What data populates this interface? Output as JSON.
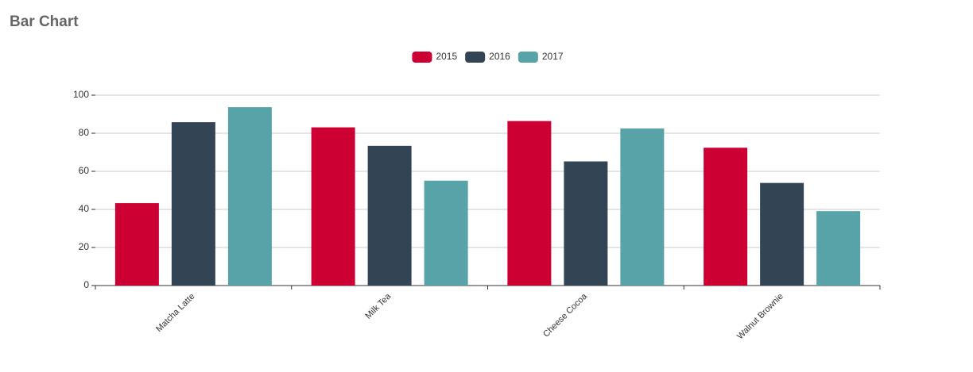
{
  "chart_data": {
    "type": "bar",
    "title": "Bar Chart",
    "categories": [
      "Matcha Latte",
      "Milk Tea",
      "Cheese Cocoa",
      "Walnut Brownie"
    ],
    "series": [
      {
        "name": "2015",
        "color": "#cc0033",
        "values": [
          43.3,
          83.1,
          86.4,
          72.4
        ]
      },
      {
        "name": "2016",
        "color": "#334455",
        "values": [
          85.8,
          73.4,
          65.2,
          53.9
        ]
      },
      {
        "name": "2017",
        "color": "#57a3a8",
        "values": [
          93.7,
          55.1,
          82.5,
          39.1
        ]
      }
    ],
    "ylim": [
      0,
      100
    ],
    "yticks": [
      0,
      20,
      40,
      60,
      80,
      100
    ],
    "grid": true,
    "legend": "top"
  }
}
